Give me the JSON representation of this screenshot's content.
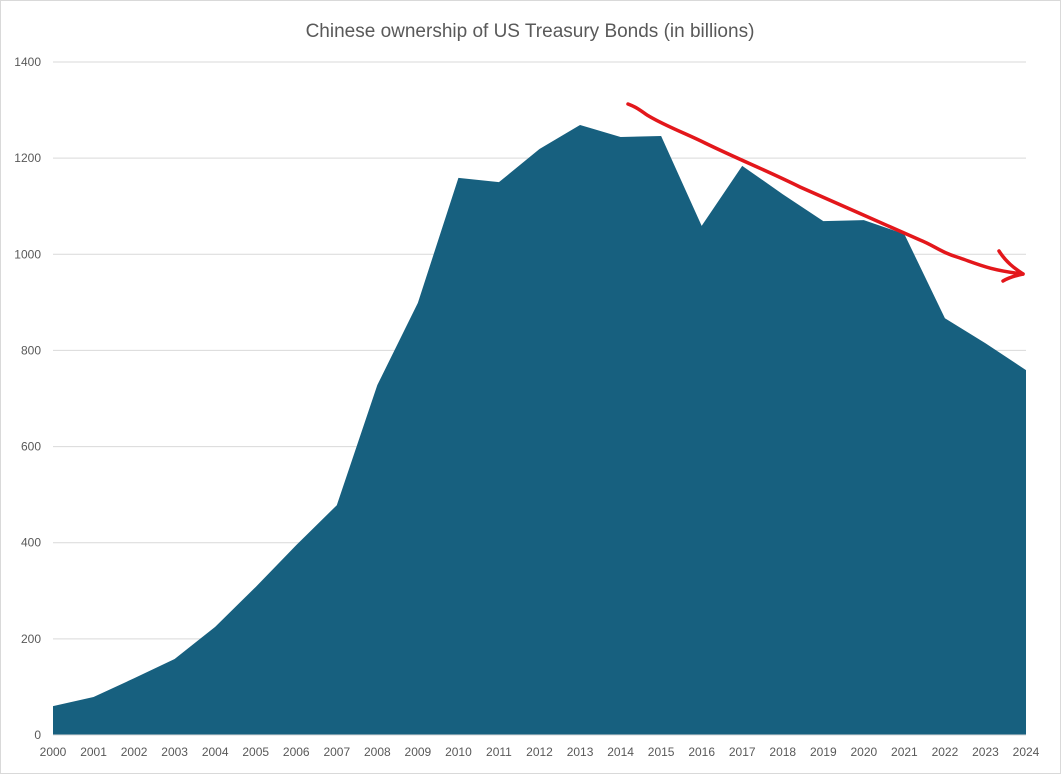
{
  "chart_data": {
    "type": "area",
    "title": "Chinese ownership of US Treasury Bonds (in billions)",
    "xlabel": "",
    "ylabel": "",
    "categories": [
      "2000",
      "2001",
      "2002",
      "2003",
      "2004",
      "2005",
      "2006",
      "2007",
      "2008",
      "2009",
      "2010",
      "2011",
      "2012",
      "2013",
      "2014",
      "2015",
      "2016",
      "2017",
      "2018",
      "2019",
      "2020",
      "2021",
      "2022",
      "2023",
      "2024"
    ],
    "values": [
      60,
      79,
      118,
      158,
      225,
      308,
      395,
      478,
      728,
      899,
      1159,
      1150,
      1219,
      1269,
      1244,
      1246,
      1059,
      1184,
      1125,
      1069,
      1071,
      1042,
      867,
      815,
      759
    ],
    "ylim": [
      0,
      1400
    ],
    "yticks": [
      "0",
      "200",
      "400",
      "600",
      "800",
      "1000",
      "1200",
      "1400"
    ],
    "grid": true,
    "legend": "none",
    "colors": {
      "fill": "#17607f",
      "annotation": "#e3171b",
      "grid": "#d9d9d9",
      "text": "#595959"
    },
    "annotations": [
      {
        "type": "hand-drawn-arrow",
        "from_year": 2014,
        "to_year": 2024,
        "meaning": "downward trend"
      }
    ]
  }
}
